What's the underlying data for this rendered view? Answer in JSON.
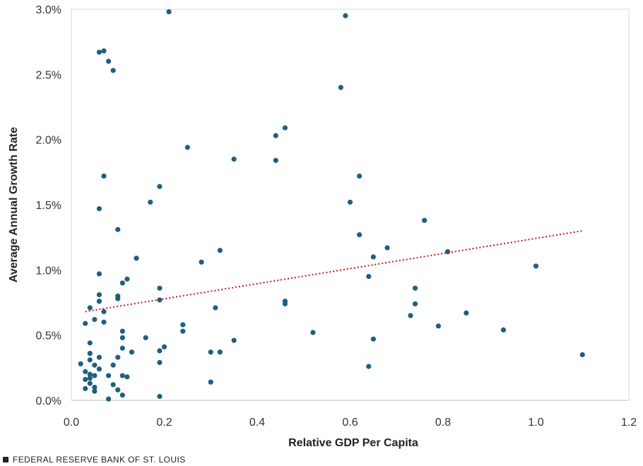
{
  "footer": {
    "source": "FEDERAL RESERVE BANK OF ST. LOUIS"
  },
  "chart_data": {
    "type": "scatter",
    "title": "",
    "xlabel": "Relative GDP Per Capita",
    "ylabel": "Average Annual Growth Rate",
    "xlim": [
      0,
      1.2
    ],
    "ylim": [
      0,
      3.0
    ],
    "x_ticks": [
      0,
      0.2,
      0.4,
      0.6,
      0.8,
      1.0,
      1.2
    ],
    "x_tick_labels": [
      "0.0",
      "0.2",
      "0.4",
      "0.6",
      "0.8",
      "1.0",
      "1.2"
    ],
    "y_ticks": [
      0,
      0.5,
      1.0,
      1.5,
      2.0,
      2.5,
      3.0
    ],
    "y_tick_labels": [
      "0.0%",
      "0.5%",
      "1.0%",
      "1.5%",
      "2.0%",
      "2.5%",
      "3.0%"
    ],
    "grid": false,
    "legend": "none",
    "point_color": "#1f5f7f",
    "trend_color": "#c0171c",
    "trendline": {
      "x": [
        0.03,
        1.1
      ],
      "y": [
        0.68,
        1.3
      ]
    },
    "points": [
      [
        0.21,
        2.98
      ],
      [
        0.59,
        2.95
      ],
      [
        0.07,
        2.68
      ],
      [
        0.06,
        2.67
      ],
      [
        0.08,
        2.6
      ],
      [
        0.09,
        2.53
      ],
      [
        0.58,
        2.4
      ],
      [
        0.46,
        2.09
      ],
      [
        0.44,
        2.03
      ],
      [
        0.25,
        1.94
      ],
      [
        0.35,
        1.85
      ],
      [
        0.44,
        1.84
      ],
      [
        0.62,
        1.72
      ],
      [
        0.07,
        1.72
      ],
      [
        0.19,
        1.64
      ],
      [
        0.17,
        1.52
      ],
      [
        0.6,
        1.52
      ],
      [
        0.06,
        1.47
      ],
      [
        0.76,
        1.38
      ],
      [
        0.1,
        1.31
      ],
      [
        0.62,
        1.27
      ],
      [
        0.68,
        1.17
      ],
      [
        0.32,
        1.15
      ],
      [
        0.81,
        1.14
      ],
      [
        0.65,
        1.1
      ],
      [
        0.14,
        1.09
      ],
      [
        0.28,
        1.06
      ],
      [
        1.0,
        1.03
      ],
      [
        0.06,
        0.97
      ],
      [
        0.64,
        0.95
      ],
      [
        0.12,
        0.93
      ],
      [
        0.11,
        0.9
      ],
      [
        0.19,
        0.86
      ],
      [
        0.74,
        0.86
      ],
      [
        0.06,
        0.81
      ],
      [
        0.1,
        0.8
      ],
      [
        0.1,
        0.78
      ],
      [
        0.19,
        0.77
      ],
      [
        0.06,
        0.76
      ],
      [
        0.46,
        0.76
      ],
      [
        0.74,
        0.74
      ],
      [
        0.46,
        0.74
      ],
      [
        0.04,
        0.71
      ],
      [
        0.31,
        0.71
      ],
      [
        0.07,
        0.68
      ],
      [
        0.85,
        0.67
      ],
      [
        0.73,
        0.65
      ],
      [
        0.05,
        0.62
      ],
      [
        0.07,
        0.6
      ],
      [
        0.03,
        0.59
      ],
      [
        0.24,
        0.58
      ],
      [
        0.79,
        0.57
      ],
      [
        0.93,
        0.54
      ],
      [
        0.11,
        0.53
      ],
      [
        0.24,
        0.53
      ],
      [
        0.52,
        0.52
      ],
      [
        0.11,
        0.48
      ],
      [
        0.16,
        0.48
      ],
      [
        0.65,
        0.47
      ],
      [
        0.35,
        0.46
      ],
      [
        0.04,
        0.44
      ],
      [
        0.2,
        0.41
      ],
      [
        0.11,
        0.4
      ],
      [
        0.19,
        0.38
      ],
      [
        0.13,
        0.37
      ],
      [
        0.3,
        0.37
      ],
      [
        0.32,
        0.37
      ],
      [
        1.1,
        0.35
      ],
      [
        0.04,
        0.36
      ],
      [
        0.06,
        0.33
      ],
      [
        0.1,
        0.33
      ],
      [
        0.04,
        0.31
      ],
      [
        0.19,
        0.29
      ],
      [
        0.02,
        0.28
      ],
      [
        0.09,
        0.27
      ],
      [
        0.05,
        0.27
      ],
      [
        0.64,
        0.26
      ],
      [
        0.06,
        0.24
      ],
      [
        0.03,
        0.22
      ],
      [
        0.04,
        0.2
      ],
      [
        0.05,
        0.19
      ],
      [
        0.08,
        0.19
      ],
      [
        0.11,
        0.19
      ],
      [
        0.12,
        0.18
      ],
      [
        0.04,
        0.17
      ],
      [
        0.03,
        0.16
      ],
      [
        0.3,
        0.14
      ],
      [
        0.04,
        0.13
      ],
      [
        0.09,
        0.12
      ],
      [
        0.05,
        0.1
      ],
      [
        0.03,
        0.09
      ],
      [
        0.1,
        0.08
      ],
      [
        0.05,
        0.07
      ],
      [
        0.11,
        0.04
      ],
      [
        0.19,
        0.03
      ],
      [
        0.08,
        0.01
      ]
    ]
  }
}
